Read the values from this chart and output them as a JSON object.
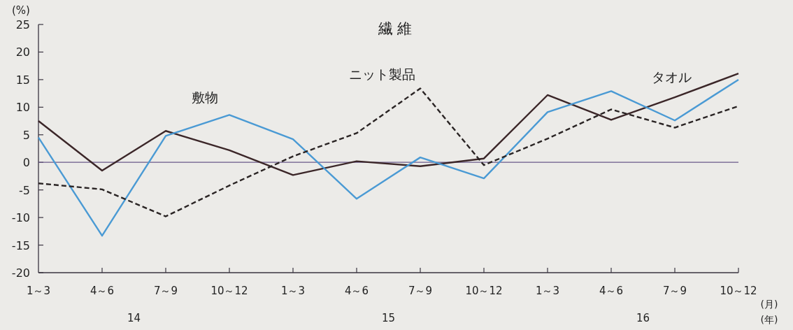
{
  "chart_data": {
    "type": "line",
    "title": "繊 維",
    "ylabel": "(%)",
    "categories": [
      "1～3",
      "4～6",
      "7～9",
      "10～12",
      "1～3",
      "4～6",
      "7～9",
      "10～12",
      "1～3",
      "4～6",
      "7～9",
      "10～12"
    ],
    "series": [
      {
        "name": "タオル",
        "color": "#3b2628",
        "line_style": "solid",
        "values": [
          7.5,
          -1.5,
          5.7,
          2.2,
          -2.3,
          0.2,
          -0.7,
          0.7,
          12.2,
          7.7,
          11.8,
          16.1
        ]
      },
      {
        "name": "敷物",
        "color": "#4a9ad4",
        "line_style": "solid",
        "values": [
          4.5,
          -13.3,
          4.8,
          8.6,
          4.2,
          -6.6,
          0.9,
          -2.9,
          9.1,
          12.9,
          7.6,
          15.0
        ]
      },
      {
        "name": "ニット製品",
        "color": "#2a2424",
        "line_style": "dashed",
        "values": [
          -3.8,
          -4.9,
          -9.8,
          -4.2,
          1.1,
          5.3,
          13.4,
          -0.5,
          4.3,
          9.6,
          6.3,
          10.2
        ]
      }
    ],
    "ylim": [
      -20,
      25
    ],
    "yticks": [
      -20,
      -15,
      -10,
      -5,
      0,
      5,
      10,
      15,
      20,
      25
    ],
    "ref_lines": [
      {
        "axis": "y",
        "value": 0,
        "color": "#6a5a8a"
      }
    ],
    "annotations": [
      "14",
      "15",
      "16",
      "(月)",
      "(年)"
    ]
  }
}
